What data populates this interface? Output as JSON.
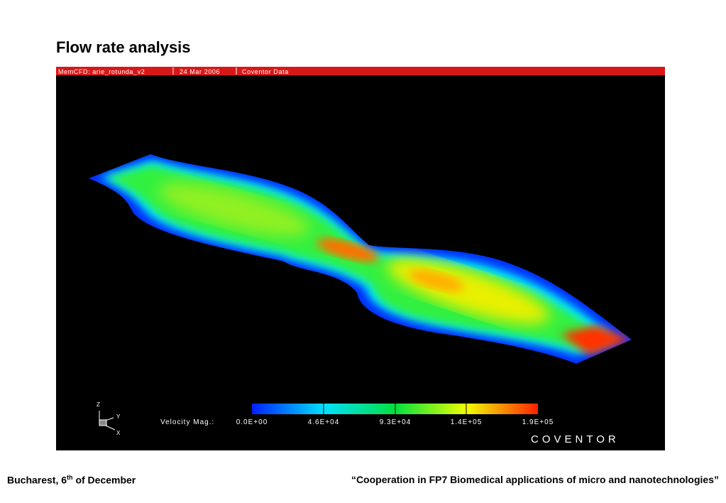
{
  "title": "Flow rate analysis",
  "figure": {
    "header": [
      "MemCFD: arie_rotunda_v2",
      "24 Mar 2006",
      "Coventor Data"
    ],
    "axes": [
      "Z",
      "Y",
      "X"
    ],
    "legend_label": "Velocity Mag.:",
    "legend_ticks": [
      "0.0E+00",
      "4.6E+04",
      "9.3E+04",
      "1.4E+05",
      "1.9E+05"
    ],
    "logo": "COVENTOR"
  },
  "footer": {
    "left": [
      "Bucharest, 6",
      "th",
      "of December"
    ],
    "right": "“Cooperation in FP7 Biomedical applications of micro and nanotechnologies”"
  }
}
